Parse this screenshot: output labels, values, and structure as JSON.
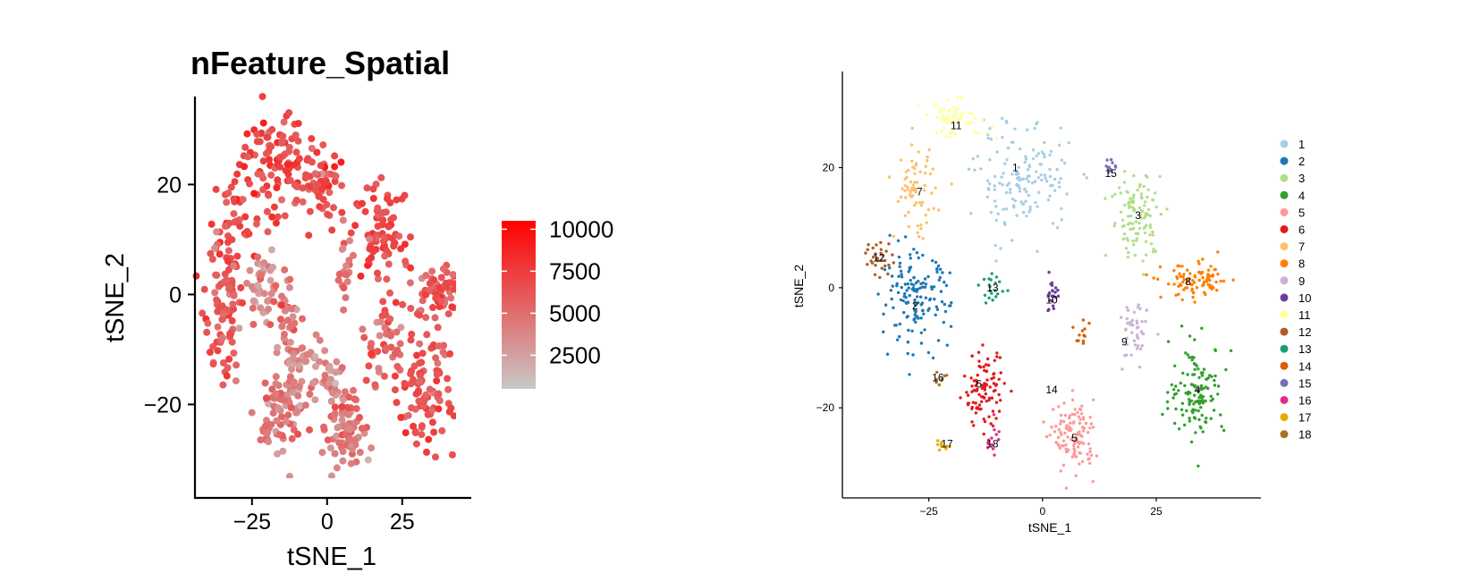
{
  "chart_data": [
    {
      "type": "scatter",
      "title": "nFeature_Spatial",
      "xlabel": "tSNE_1",
      "ylabel": "tSNE_2",
      "xticks": [
        "−25",
        "0",
        "25"
      ],
      "xtick_values": [
        -25,
        0,
        25
      ],
      "yticks": [
        "−20",
        "0",
        "20"
      ],
      "ytick_values": [
        -20,
        0,
        20
      ],
      "xlim": [
        -44,
        48
      ],
      "ylim": [
        -37,
        36
      ],
      "grid": false,
      "colorbar": {
        "ticks": [
          "10000",
          "7500",
          "5000",
          "2500"
        ],
        "tick_values": [
          10000,
          7500,
          5000,
          2500
        ],
        "range": [
          500,
          10500
        ],
        "low_color": "#c8c8c8",
        "high_color": "#ff0000"
      },
      "regions": [
        {
          "cx": -18,
          "cy": 24,
          "sx": 7,
          "sy": 6,
          "n": 90,
          "v": 7000
        },
        {
          "cx": -2,
          "cy": 20,
          "sx": 5,
          "sy": 5,
          "n": 60,
          "v": 6500
        },
        {
          "cx": -30,
          "cy": 12,
          "sx": 5,
          "sy": 7,
          "n": 50,
          "v": 6800
        },
        {
          "cx": -35,
          "cy": -3,
          "sx": 4,
          "sy": 8,
          "n": 80,
          "v": 6000
        },
        {
          "cx": -22,
          "cy": 2,
          "sx": 4,
          "sy": 4,
          "n": 40,
          "v": 3500
        },
        {
          "cx": -14,
          "cy": -3,
          "sx": 3,
          "sy": 5,
          "n": 40,
          "v": 4500
        },
        {
          "cx": 18,
          "cy": 11,
          "sx": 6,
          "sy": 6,
          "n": 80,
          "v": 6800
        },
        {
          "cx": 37,
          "cy": 1,
          "sx": 6,
          "sy": 3,
          "n": 70,
          "v": 6000
        },
        {
          "cx": 32,
          "cy": -17,
          "sx": 6,
          "sy": 7,
          "n": 100,
          "v": 6200
        },
        {
          "cx": 18,
          "cy": -8,
          "sx": 4,
          "sy": 5,
          "n": 40,
          "v": 5500
        },
        {
          "cx": -11,
          "cy": -18,
          "sx": 4,
          "sy": 6,
          "n": 60,
          "v": 4000
        },
        {
          "cx": -16,
          "cy": -22,
          "sx": 3,
          "sy": 4,
          "n": 30,
          "v": 4800
        },
        {
          "cx": 6,
          "cy": -25,
          "sx": 4,
          "sy": 5,
          "n": 80,
          "v": 4500
        },
        {
          "cx": 2,
          "cy": -16,
          "sx": 3,
          "sy": 3,
          "n": 30,
          "v": 3500
        },
        {
          "cx": -5,
          "cy": -12,
          "sx": 2,
          "sy": 2,
          "n": 15,
          "v": 3000
        },
        {
          "cx": 6,
          "cy": 4,
          "sx": 2,
          "sy": 4,
          "n": 20,
          "v": 4500
        },
        {
          "cx": -20,
          "cy": -26,
          "sx": 2,
          "sy": 2,
          "n": 10,
          "v": 4500
        }
      ]
    },
    {
      "type": "scatter",
      "title": "",
      "xlabel": "tSNE_1",
      "ylabel": "tSNE_2",
      "xticks": [
        "−25",
        "0",
        "25"
      ],
      "xtick_values": [
        -25,
        0,
        25
      ],
      "yticks": [
        "−20",
        "0",
        "20"
      ],
      "ytick_values": [
        -20,
        0,
        20
      ],
      "xlim": [
        -44,
        48
      ],
      "ylim": [
        -35,
        36
      ],
      "grid": false,
      "legend": "right",
      "clusters": [
        {
          "name": "1",
          "color": "#a6cee3",
          "cx": -4,
          "cy": 18,
          "sx": 7,
          "sy": 6,
          "n": 150
        },
        {
          "name": "2",
          "color": "#1f78b4",
          "cx": -28,
          "cy": -2,
          "sx": 5,
          "sy": 5,
          "n": 150
        },
        {
          "name": "3",
          "color": "#b2df8a",
          "cx": 21,
          "cy": 12,
          "sx": 4,
          "sy": 5,
          "n": 110
        },
        {
          "name": "4",
          "color": "#33a02c",
          "cx": 34,
          "cy": -17,
          "sx": 4,
          "sy": 5,
          "n": 130
        },
        {
          "name": "5",
          "color": "#fb9a99",
          "cx": 7,
          "cy": -25,
          "sx": 3,
          "sy": 4,
          "n": 120
        },
        {
          "name": "6",
          "color": "#e31a1c",
          "cx": -13,
          "cy": -17,
          "sx": 3,
          "sy": 4,
          "n": 100
        },
        {
          "name": "7",
          "color": "#fdbf6f",
          "cx": -28,
          "cy": 16,
          "sx": 3,
          "sy": 5,
          "n": 70
        },
        {
          "name": "8",
          "color": "#ff7f00",
          "cx": 34,
          "cy": 1,
          "sx": 5,
          "sy": 2,
          "n": 90
        },
        {
          "name": "9",
          "color": "#cab2d6",
          "cx": 20,
          "cy": -8,
          "sx": 2,
          "sy": 4,
          "n": 45
        },
        {
          "name": "10",
          "color": "#6a3d9a",
          "cx": 2,
          "cy": -1,
          "sx": 1,
          "sy": 2,
          "n": 22
        },
        {
          "name": "11",
          "color": "#ffff99",
          "cx": -19,
          "cy": 28,
          "sx": 5,
          "sy": 2,
          "n": 60
        },
        {
          "name": "12",
          "color": "#b15928",
          "cx": -36,
          "cy": 5,
          "sx": 2,
          "sy": 2,
          "n": 30
        },
        {
          "name": "13",
          "color": "#1b9e77",
          "cx": -11,
          "cy": 0,
          "sx": 2,
          "sy": 2,
          "n": 20
        },
        {
          "name": "14",
          "color": "#d95f02",
          "cx": 9,
          "cy": -7,
          "sx": 1,
          "sy": 2,
          "n": 12
        },
        {
          "name": "15",
          "color": "#7570b3",
          "cx": 15,
          "cy": 20,
          "sx": 1,
          "sy": 1,
          "n": 12
        },
        {
          "name": "16",
          "color": "#e7298a",
          "cx": -11,
          "cy": -25,
          "sx": 1,
          "sy": 2,
          "n": 14
        },
        {
          "name": "17",
          "color": "#e6ab02",
          "cx": -22,
          "cy": -26,
          "sx": 1,
          "sy": 1,
          "n": 10
        },
        {
          "name": "18",
          "color": "#a6761d",
          "cx": -22,
          "cy": -15,
          "sx": 1,
          "sy": 1,
          "n": 8
        }
      ],
      "cluster_labels": [
        {
          "text": "1",
          "x": -6,
          "y": 20
        },
        {
          "text": "2",
          "x": -28,
          "y": -3
        },
        {
          "text": "3",
          "x": 21,
          "y": 12
        },
        {
          "text": "4",
          "x": 34,
          "y": -17
        },
        {
          "text": "5",
          "x": 7,
          "y": -25
        },
        {
          "text": "6",
          "x": -14,
          "y": -16
        },
        {
          "text": "7",
          "x": -27,
          "y": 16
        },
        {
          "text": "8",
          "x": 32,
          "y": 1
        },
        {
          "text": "9",
          "x": 18,
          "y": -9
        },
        {
          "text": "10",
          "x": 2,
          "y": -2
        },
        {
          "text": "11",
          "x": -19,
          "y": 27
        },
        {
          "text": "12",
          "x": -36,
          "y": 5
        },
        {
          "text": "13",
          "x": -11,
          "y": 0
        },
        {
          "text": "14",
          "x": 2,
          "y": -17
        },
        {
          "text": "15",
          "x": 15,
          "y": 19
        },
        {
          "text": "16",
          "x": -23,
          "y": -15
        },
        {
          "text": "17",
          "x": -21,
          "y": -26
        },
        {
          "text": "18",
          "x": -11,
          "y": -26
        }
      ]
    }
  ]
}
